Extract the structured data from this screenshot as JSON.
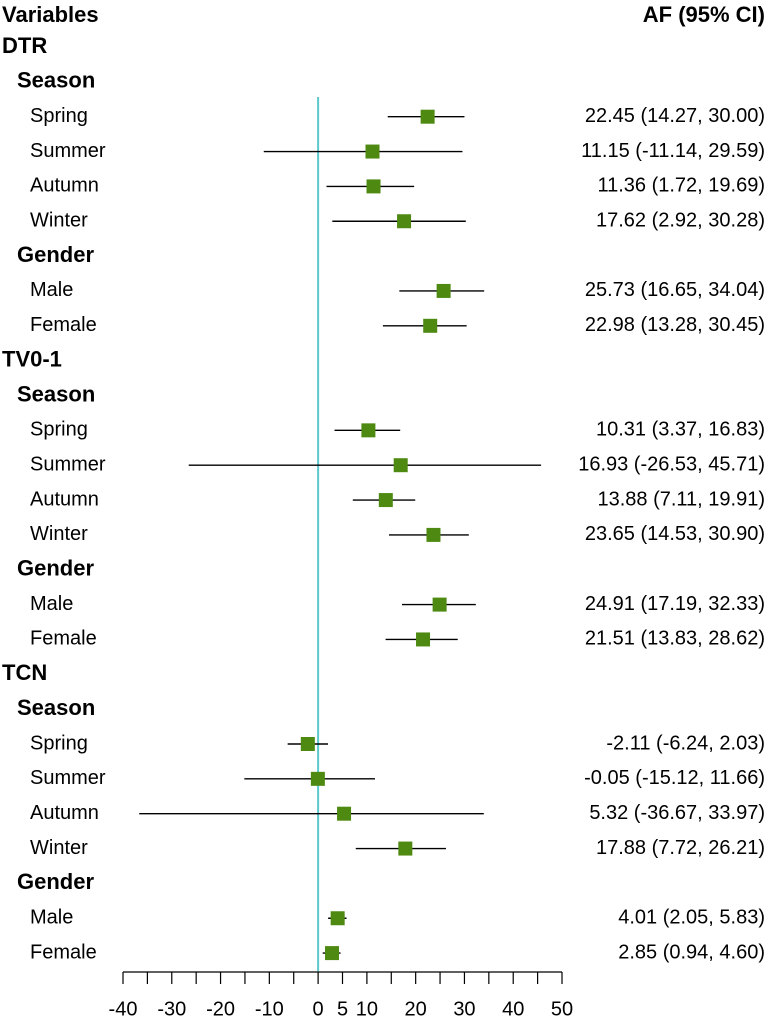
{
  "headers": {
    "variables": "Variables",
    "estimate": "AF (95% CI)"
  },
  "colors": {
    "marker": "#4E8A12",
    "ref_line": "#5BC8CC",
    "ci_line": "#000000"
  },
  "chart_data": {
    "type": "forest",
    "xlabel": "",
    "ylabel": "",
    "xlim": [
      -40,
      50
    ],
    "reference_line": 0,
    "ticks": [
      -40,
      -30,
      -20,
      -10,
      0,
      5,
      10,
      20,
      30,
      40,
      50
    ],
    "groups": [
      {
        "name": "DTR",
        "subgroups": [
          {
            "name": "Season",
            "rows": [
              {
                "label": "Spring",
                "est": 22.45,
                "lo": 14.27,
                "hi": 30.0,
                "text": "22.45 (14.27, 30.00)"
              },
              {
                "label": "Summer",
                "est": 11.15,
                "lo": -11.14,
                "hi": 29.59,
                "text": "11.15 (-11.14, 29.59)"
              },
              {
                "label": "Autumn",
                "est": 11.36,
                "lo": 1.72,
                "hi": 19.69,
                "text": "11.36 (1.72, 19.69)"
              },
              {
                "label": "Winter",
                "est": 17.62,
                "lo": 2.92,
                "hi": 30.28,
                "text": "17.62 (2.92, 30.28)"
              }
            ]
          },
          {
            "name": "Gender",
            "rows": [
              {
                "label": "Male",
                "est": 25.73,
                "lo": 16.65,
                "hi": 34.04,
                "text": "25.73 (16.65, 34.04)"
              },
              {
                "label": "Female",
                "est": 22.98,
                "lo": 13.28,
                "hi": 30.45,
                "text": "22.98 (13.28, 30.45)"
              }
            ]
          }
        ]
      },
      {
        "name": "TV0-1",
        "subgroups": [
          {
            "name": "Season",
            "rows": [
              {
                "label": "Spring",
                "est": 10.31,
                "lo": 3.37,
                "hi": 16.83,
                "text": "10.31 (3.37, 16.83)"
              },
              {
                "label": "Summer",
                "est": 16.93,
                "lo": -26.53,
                "hi": 45.71,
                "text": "16.93 (-26.53, 45.71)"
              },
              {
                "label": "Autumn",
                "est": 13.88,
                "lo": 7.11,
                "hi": 19.91,
                "text": "13.88 (7.11, 19.91)"
              },
              {
                "label": "Winter",
                "est": 23.65,
                "lo": 14.53,
                "hi": 30.9,
                "text": "23.65 (14.53, 30.90)"
              }
            ]
          },
          {
            "name": "Gender",
            "rows": [
              {
                "label": "Male",
                "est": 24.91,
                "lo": 17.19,
                "hi": 32.33,
                "text": "24.91 (17.19, 32.33)"
              },
              {
                "label": "Female",
                "est": 21.51,
                "lo": 13.83,
                "hi": 28.62,
                "text": "21.51 (13.83, 28.62)"
              }
            ]
          }
        ]
      },
      {
        "name": "TCN",
        "subgroups": [
          {
            "name": "Season",
            "rows": [
              {
                "label": "Spring",
                "est": -2.11,
                "lo": -6.24,
                "hi": 2.03,
                "text": "-2.11 (-6.24, 2.03)"
              },
              {
                "label": "Summer",
                "est": -0.05,
                "lo": -15.12,
                "hi": 11.66,
                "text": "-0.05 (-15.12, 11.66)"
              },
              {
                "label": "Autumn",
                "est": 5.32,
                "lo": -36.67,
                "hi": 33.97,
                "text": "5.32 (-36.67, 33.97)"
              },
              {
                "label": "Winter",
                "est": 17.88,
                "lo": 7.72,
                "hi": 26.21,
                "text": "17.88 (7.72, 26.21)"
              }
            ]
          },
          {
            "name": "Gender",
            "rows": [
              {
                "label": "Male",
                "est": 4.01,
                "lo": 2.05,
                "hi": 5.83,
                "text": "4.01 (2.05, 5.83)"
              },
              {
                "label": "Female",
                "est": 2.85,
                "lo": 0.94,
                "hi": 4.6,
                "text": "2.85 (0.94, 4.60)"
              }
            ]
          }
        ]
      }
    ]
  }
}
